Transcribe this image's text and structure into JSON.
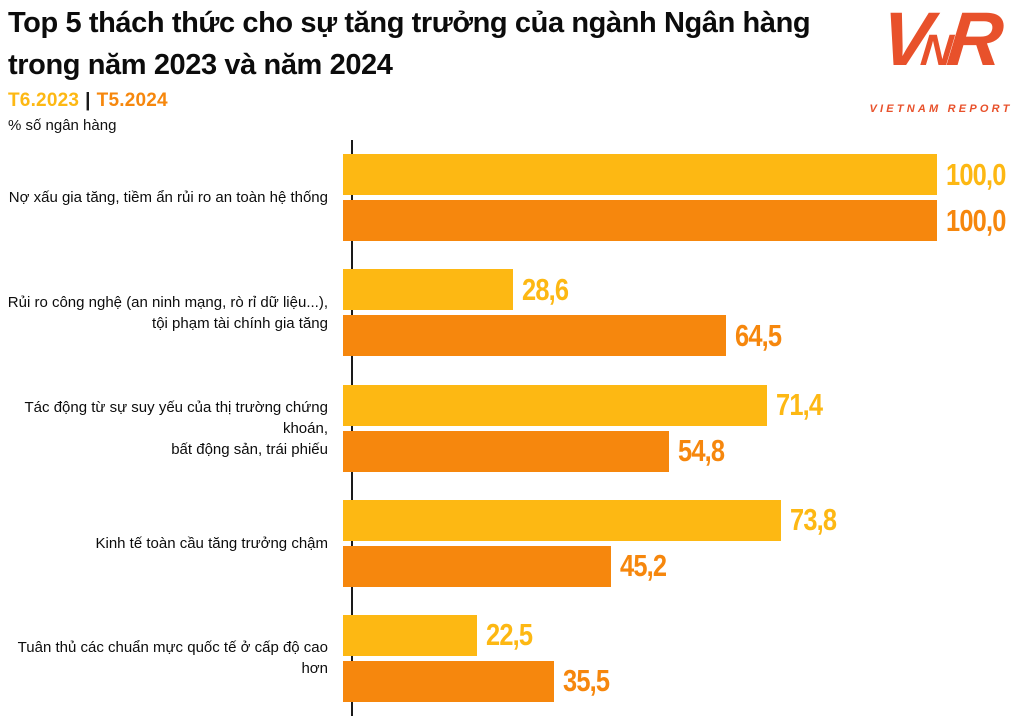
{
  "header": {
    "title_line1": "Top 5 thách thức cho sự tăng trưởng của ngành Ngân hàng",
    "title_line2": "trong năm 2023 và năm 2024",
    "unit_note": "% số ngân hàng"
  },
  "legend": {
    "series1_label": "T6.2023",
    "separator": "|",
    "series2_label": "T5.2024"
  },
  "logo": {
    "letters": [
      "V",
      "N",
      "R"
    ],
    "subtext": "VIETNAM REPORT",
    "color": "#E8512B"
  },
  "colors": {
    "series1": "#FDB813",
    "series2": "#F6870D",
    "axis": "#1A1A1A"
  },
  "chart_data": {
    "type": "bar",
    "orientation": "horizontal",
    "title": "Top 5 thách thức cho sự tăng trưởng của ngành Ngân hàng trong năm 2023 và năm 2024",
    "value_unit": "% số ngân hàng",
    "xlim": [
      0,
      100
    ],
    "grid": false,
    "legend_position": "top-left",
    "decimal_separator": ",",
    "categories": [
      "Nợ xấu gia tăng, tiềm ẩn rủi ro an toàn hệ thống",
      "Rủi ro công nghệ (an ninh mạng, rò rỉ dữ liệu...), tội phạm tài chính gia tăng",
      "Tác động từ sự suy yếu của thị trường chứng khoán, bất động sản, trái phiếu",
      "Kinh tế toàn cầu tăng trưởng chậm",
      "Tuân thủ các chuẩn mực quốc tế ở cấp độ cao hơn"
    ],
    "categories_wrapped": [
      [
        "Nợ xấu gia tăng, tiềm ẩn rủi ro an toàn hệ thống"
      ],
      [
        "Rủi ro công nghệ (an ninh mạng, rò rỉ dữ liệu...),",
        "tội phạm tài chính gia tăng"
      ],
      [
        "Tác động từ sự suy yếu của thị trường chứng khoán,",
        "bất động sản, trái phiếu"
      ],
      [
        "Kinh tế toàn cầu tăng trưởng chậm"
      ],
      [
        "Tuân thủ các chuẩn mực quốc tế ở cấp độ cao hơn"
      ]
    ],
    "series": [
      {
        "name": "T6.2023",
        "color": "#FDB813",
        "values": [
          100.0,
          28.6,
          71.4,
          73.8,
          22.5
        ],
        "display_labels": [
          "100,0",
          "28,6",
          "71,4",
          "73,8",
          "22,5"
        ]
      },
      {
        "name": "T5.2024",
        "color": "#F6870D",
        "values": [
          100.0,
          64.5,
          54.8,
          45.2,
          35.5
        ],
        "display_labels": [
          "100,0",
          "64,5",
          "54,8",
          "45,2",
          "35,5"
        ]
      }
    ]
  }
}
